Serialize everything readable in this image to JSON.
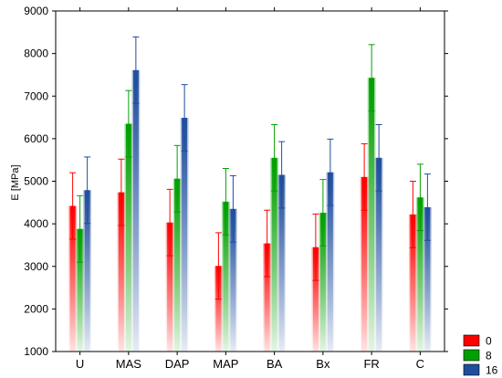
{
  "chart_data": {
    "type": "bar",
    "title": "",
    "xlabel": "",
    "ylabel": "E [MPa]",
    "ylim": [
      1000,
      9000
    ],
    "yticks": [
      1000,
      2000,
      3000,
      4000,
      5000,
      6000,
      7000,
      8000,
      9000
    ],
    "categories": [
      "U",
      "MAS",
      "DAP",
      "MAP",
      "BA",
      "Bx",
      "FR",
      "C"
    ],
    "grid": false,
    "legend_position": "bottom-right",
    "series": [
      {
        "name": "0",
        "color": "#ff0000",
        "values": [
          4420,
          4740,
          4030,
          3010,
          3540,
          3450,
          5100,
          4220
        ],
        "errors": [
          780,
          780,
          780,
          780,
          780,
          780,
          780,
          780
        ]
      },
      {
        "name": "8",
        "color": "#00a000",
        "values": [
          3880,
          6350,
          5060,
          4520,
          5550,
          4260,
          7430,
          4620
        ],
        "errors": [
          780,
          780,
          780,
          780,
          780,
          780,
          780,
          780
        ]
      },
      {
        "name": "16",
        "color": "#1f4e9c",
        "values": [
          4790,
          7610,
          6490,
          4350,
          5150,
          5210,
          5550,
          4390
        ],
        "errors": [
          780,
          780,
          780,
          780,
          780,
          780,
          780,
          780
        ]
      }
    ]
  }
}
